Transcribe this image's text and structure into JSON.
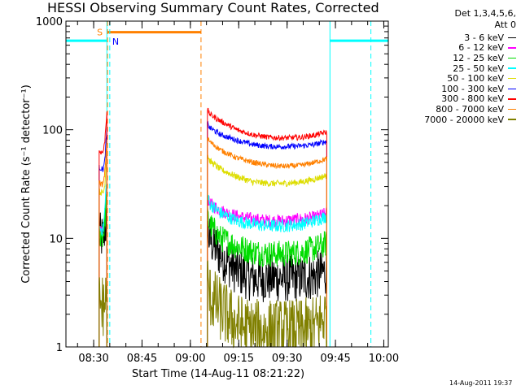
{
  "window": {
    "title": "HESSI Observing Summary Count Rates, Corrected"
  },
  "footer": {
    "timestamp": "14-Aug-2011 19:37"
  },
  "legend_header": {
    "line1": "Det 1,3,4,5,6,",
    "line2": "Att 0"
  },
  "chart_data": {
    "type": "line",
    "title": "HESSI Observing Summary Count Rates, Corrected",
    "xlabel": "Start Time (14-Aug-11 08:21:22)",
    "ylabel": "Corrected Count Rate (s⁻¹ detector⁻¹)",
    "y_scale": "log",
    "ylim": [
      1,
      1000
    ],
    "yticks": [
      1,
      10,
      100,
      1000
    ],
    "ytick_labels": [
      "1",
      "10",
      "100",
      "1000"
    ],
    "xlim_minutes": [
      0,
      100
    ],
    "xticks_minutes": [
      8.6,
      23.6,
      38.6,
      53.6,
      68.6,
      83.6,
      98.6
    ],
    "xtick_labels": [
      "08:30",
      "08:45",
      "09:00",
      "09:15",
      "09:30",
      "09:45",
      "10:00"
    ],
    "grid": false,
    "legend_position": "right, outside",
    "series": [
      {
        "name": "3 - 6 keV",
        "color": "#000000",
        "scatter": 0.45,
        "segments": [
          {
            "x": [
              10.3,
              11.5,
              12.0,
              12.7
            ],
            "y": [
              10.5,
              10,
              12,
              14
            ]
          },
          {
            "x": [
              43.9,
              44.5,
              48,
              53,
              58,
              63,
              68,
              73,
              77,
              80.9
            ],
            "y": [
              12.5,
              10,
              7,
              5,
              4.3,
              4.3,
              4.3,
              4.3,
              4.5,
              5
            ]
          }
        ]
      },
      {
        "name": "6 - 12 keV",
        "color": "#ff00ff",
        "scatter": 0.12,
        "segments": [
          {
            "x": [
              10.3,
              11.5,
              12.0,
              12.7
            ],
            "y": [
              11.5,
              11,
              15,
              30
            ]
          },
          {
            "x": [
              43.9,
              44.5,
              48,
              53,
              58,
              63,
              68,
              73,
              77,
              80.9
            ],
            "y": [
              24,
              21,
              18,
              16,
              15,
              14.5,
              14.5,
              15,
              15.5,
              17
            ]
          }
        ]
      },
      {
        "name": "12 - 25 keV",
        "color": "#00dd00",
        "scatter": 0.25,
        "segments": [
          {
            "x": [
              10.3,
              11.5,
              12.0,
              12.7
            ],
            "y": [
              11,
              10.5,
              14,
              26
            ]
          },
          {
            "x": [
              43.9,
              44.5,
              48,
              53,
              58,
              63,
              68,
              73,
              77,
              80.9
            ],
            "y": [
              16,
              13.5,
              10,
              8.5,
              7.5,
              7.2,
              7.2,
              7.5,
              8,
              9
            ]
          }
        ]
      },
      {
        "name": "25 - 50 keV",
        "color": "#00ffff",
        "scatter": 0.12,
        "segments": [
          {
            "x": [
              10.3,
              11.5,
              12.0,
              12.7
            ],
            "y": [
              12.5,
              12,
              17,
              40
            ]
          },
          {
            "x": [
              43.9,
              44.5,
              48,
              53,
              58,
              63,
              68,
              73,
              77,
              80.9
            ],
            "y": [
              25,
              21,
              17,
              14.5,
              13.5,
              13,
              13,
              13.5,
              14.5,
              16
            ]
          }
        ]
      },
      {
        "name": "50 - 100 keV",
        "color": "#dddd00",
        "scatter": 0.06,
        "segments": [
          {
            "x": [
              10.3,
              11.5,
              12.0,
              12.7
            ],
            "y": [
              27,
              26,
              30,
              60
            ]
          },
          {
            "x": [
              43.9,
              44.5,
              48,
              53,
              58,
              63,
              68,
              73,
              77,
              80.9
            ],
            "y": [
              60,
              52,
              43,
              37,
              33,
              32,
              32,
              33,
              35,
              38
            ]
          }
        ]
      },
      {
        "name": "100 - 300 keV",
        "color": "#0000ff",
        "scatter": 0.05,
        "segments": [
          {
            "x": [
              10.3,
              11.5,
              12.0,
              12.7
            ],
            "y": [
              45,
              43,
              50,
              100
            ]
          },
          {
            "x": [
              43.9,
              44.5,
              48,
              53,
              58,
              63,
              68,
              73,
              77,
              80.9
            ],
            "y": [
              115,
              105,
              90,
              80,
              73,
              70,
              70,
              71,
              73,
              78
            ]
          }
        ]
      },
      {
        "name": "300 - 800 keV",
        "color": "#ff0000",
        "scatter": 0.05,
        "segments": [
          {
            "x": [
              10.3,
              11.5,
              12.0,
              12.7
            ],
            "y": [
              63,
              62,
              75,
              150
            ]
          },
          {
            "x": [
              43.9,
              44.5,
              48,
              53,
              58,
              63,
              68,
              73,
              77,
              80.9
            ],
            "y": [
              155,
              140,
              120,
              100,
              90,
              85,
              84,
              85,
              89,
              95
            ]
          }
        ]
      },
      {
        "name": "800 - 7000 keV",
        "color": "#ff8000",
        "scatter": 0.05,
        "segments": [
          {
            "x": [
              10.3,
              11.5,
              12.0,
              12.7
            ],
            "y": [
              33,
              31,
              38,
              80
            ]
          },
          {
            "x": [
              43.9,
              44.5,
              48,
              53,
              58,
              63,
              68,
              73,
              77,
              80.9
            ],
            "y": [
              85,
              78,
              65,
              55,
              50,
              47,
              46,
              47,
              50,
              54
            ]
          }
        ]
      },
      {
        "name": "7000 - 20000 keV",
        "color": "#808000",
        "scatter": 0.6,
        "segments": [
          {
            "x": [
              10.3,
              11.5,
              12.0,
              12.7
            ],
            "y": [
              2.5,
              2.4,
              2.5,
              3
            ]
          },
          {
            "x": [
              43.9,
              44.5,
              48,
              53,
              58,
              63,
              68,
              73,
              77,
              80.9
            ],
            "y": [
              4,
              3,
              2.2,
              1.6,
              1.4,
              1.4,
              1.4,
              1.4,
              1.5,
              2
            ]
          }
        ]
      }
    ],
    "flags": {
      "saa": {
        "label": "S",
        "color": "#ff8000",
        "start_min": 12.9,
        "end_min": 41.9,
        "level": 790
      },
      "night": {
        "label": "N",
        "color": "#00ffff",
        "segments": [
          {
            "start_min": 0,
            "end_min": 12.7
          },
          {
            "start_min": 81.9,
            "end_min": 100
          }
        ],
        "level": 660,
        "vertical_at": [
          12.7,
          13.6,
          81.9,
          94.6
        ]
      },
      "saa_lines_at": [
        12.9,
        41.9
      ]
    }
  }
}
